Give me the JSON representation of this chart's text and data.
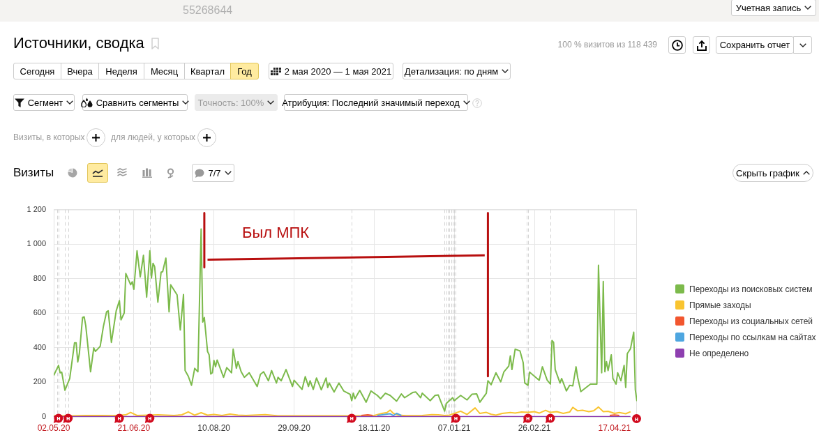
{
  "chart_data": {
    "type": "line",
    "title": "Источники, сводка",
    "subtitle": "Визиты",
    "annotations": [
      "55268644",
      "Учетная запись",
      "100 % визитов из 118 439",
      "Сохранить отчет",
      "Сегодня",
      "Вчера",
      "Неделя",
      "Месяц",
      "Квартал",
      "Год",
      "2 мая 2020 — 1 мая 2021",
      "Детализация: по дням",
      "Сегмент",
      "Сравнить сегменты",
      "Точность: 100%",
      "Атрибуция: Последний значимый переход",
      "Визиты, в которых",
      "для людей, у которых",
      "7/7",
      "Скрыть график",
      "Был МПК",
      "н"
    ],
    "xlim": [
      "2020-05-02",
      "2021-05-01"
    ],
    "xticks": [
      {
        "value": "2020-05-02",
        "label": "02.05.20"
      },
      {
        "value": "2020-06-21",
        "label": "21.06.20"
      },
      {
        "value": "2020-08-10",
        "label": "10.08.20"
      },
      {
        "value": "2020-09-29",
        "label": "29.09.20"
      },
      {
        "value": "2020-11-18",
        "label": "18.11.20"
      },
      {
        "value": "2021-01-07",
        "label": "07.01.21"
      },
      {
        "value": "2021-02-26",
        "label": "26.02.21"
      },
      {
        "value": "2021-04-17",
        "label": "17.04.21"
      }
    ],
    "ylim": [
      0,
      1200
    ],
    "yticks": [
      0,
      200,
      400,
      600,
      800,
      {
        "value": 1000,
        "label": "1 000"
      },
      {
        "value": 1200,
        "label": "1 200"
      }
    ],
    "grid": true,
    "legend": "right",
    "series": [
      {
        "name": "Переходы из поисковых систем",
        "color": "#7cba4b",
        "x": [
          "2020-05-02",
          "2020-05-05",
          "2020-05-06",
          "2020-05-07",
          "2020-05-09",
          "2020-05-12",
          "2020-05-15",
          "2020-05-16",
          "2020-05-17",
          "2020-05-18",
          "2020-05-20",
          "2020-05-21",
          "2020-05-22",
          "2020-05-25",
          "2020-05-27",
          "2020-05-28",
          "2020-05-31",
          "2020-06-02",
          "2020-06-04",
          "2020-06-05",
          "2020-06-07",
          "2020-06-10",
          "2020-06-12",
          "2020-06-13",
          "2020-06-15",
          "2020-06-16",
          "2020-06-19",
          "2020-06-20",
          "2020-06-21",
          "2020-06-23",
          "2020-06-25",
          "2020-06-27",
          "2020-06-29",
          "2020-07-01",
          "2020-07-02",
          "2020-07-03",
          "2020-07-04",
          "2020-07-06",
          "2020-07-08",
          "2020-07-09",
          "2020-07-11",
          "2020-07-13",
          "2020-07-14",
          "2020-07-18",
          "2020-07-20",
          "2020-07-22",
          "2020-07-23",
          "2020-07-25",
          "2020-07-27",
          "2020-07-29",
          "2020-07-31",
          "2020-08-02",
          "2020-08-03",
          "2020-08-04",
          "2020-08-06",
          "2020-08-07",
          "2020-08-08",
          "2020-08-09",
          "2020-08-10",
          "2020-08-11",
          "2020-08-12",
          "2020-08-16",
          "2020-08-18",
          "2020-08-21",
          "2020-08-22",
          "2020-08-24",
          "2020-08-25",
          "2020-08-27",
          "2020-08-29",
          "2020-09-01",
          "2020-09-06",
          "2020-09-08",
          "2020-09-10",
          "2020-09-13",
          "2020-09-15",
          "2020-09-18",
          "2020-09-19",
          "2020-09-21",
          "2020-09-24",
          "2020-09-28",
          "2020-09-29",
          "2020-10-04",
          "2020-10-06",
          "2020-10-08",
          "2020-10-09",
          "2020-10-11",
          "2020-10-13",
          "2020-10-16",
          "2020-10-19",
          "2020-10-20",
          "2020-10-21",
          "2020-10-24",
          "2020-10-27",
          "2020-10-30",
          "2020-11-03",
          "2020-11-04",
          "2020-11-05",
          "2020-11-06",
          "2020-11-09",
          "2020-11-13",
          "2020-11-16",
          "2020-11-20",
          "2020-11-22",
          "2020-11-25",
          "2020-11-28",
          "2020-12-02",
          "2020-12-05",
          "2020-12-07",
          "2020-12-12",
          "2020-12-14",
          "2020-12-17",
          "2020-12-18",
          "2020-12-23",
          "2020-12-26",
          "2020-12-28",
          "2021-01-01",
          "2021-01-02",
          "2021-01-06",
          "2021-01-07",
          "2021-01-11",
          "2021-01-15",
          "2021-01-18",
          "2021-01-21",
          "2021-01-23",
          "2021-01-27",
          "2021-01-28",
          "2021-01-30",
          "2021-02-02",
          "2021-02-05",
          "2021-02-07",
          "2021-02-10",
          "2021-02-11",
          "2021-02-12",
          "2021-02-14",
          "2021-02-17",
          "2021-02-19",
          "2021-02-20",
          "2021-02-22",
          "2021-02-23",
          "2021-03-01",
          "2021-03-03",
          "2021-03-06",
          "2021-03-08",
          "2021-03-09",
          "2021-03-10",
          "2021-03-11",
          "2021-03-14",
          "2021-03-15",
          "2021-03-18",
          "2021-03-20",
          "2021-03-22",
          "2021-03-24",
          "2021-03-25",
          "2021-03-27",
          "2021-04-02",
          "2021-04-06",
          "2021-04-07",
          "2021-04-09",
          "2021-04-10",
          "2021-04-11",
          "2021-04-12",
          "2021-04-13",
          "2021-04-15",
          "2021-04-16",
          "2021-04-18",
          "2021-04-19",
          "2021-04-21",
          "2021-04-23",
          "2021-04-24",
          "2021-04-25",
          "2021-04-27",
          "2021-04-29",
          "2021-04-30",
          "2021-05-01"
        ],
        "values": [
          240,
          298,
          255,
          259,
          154,
          222,
          429,
          429,
          318,
          366,
          575,
          579,
          528,
          261,
          399,
          379,
          408,
          523,
          608,
          614,
          431,
          614,
          673,
          562,
          601,
          830,
          765,
          782,
          738,
          961,
          810,
          935,
          693,
          961,
          804,
          889,
          869,
          664,
          837,
          840,
          919,
          608,
          765,
          706,
          503,
          708,
          268,
          235,
          183,
          281,
          261,
          1087,
          549,
          575,
          379,
          359,
          248,
          255,
          327,
          290,
          329,
          229,
          285,
          255,
          392,
          281,
          320,
          261,
          229,
          255,
          176,
          246,
          261,
          209,
          268,
          196,
          229,
          209,
          274,
          176,
          212,
          159,
          233,
          176,
          209,
          159,
          225,
          157,
          225,
          170,
          196,
          144,
          196,
          150,
          131,
          94,
          137,
          105,
          153,
          85,
          150,
          124,
          105,
          137,
          124,
          91,
          133,
          111,
          141,
          144,
          111,
          137,
          94,
          124,
          127,
          33,
          78,
          111,
          94,
          124,
          98,
          131,
          133,
          85,
          137,
          209,
          186,
          255,
          203,
          261,
          294,
          353,
          274,
          392,
          382,
          314,
          196,
          183,
          259,
          212,
          290,
          212,
          190,
          442,
          431,
          274,
          196,
          222,
          150,
          183,
          180,
          290,
          229,
          146,
          190,
          190,
          878,
          255,
          784,
          261,
          320,
          268,
          359,
          222,
          190,
          255,
          209,
          298,
          170,
          366,
          395,
          490,
          157,
          91
        ]
      },
      {
        "name": "Прямые заходы",
        "color": "#f9c430",
        "x": [
          "2020-05-02",
          "2020-05-14",
          "2020-05-22",
          "2020-06-01",
          "2020-06-08",
          "2020-06-16",
          "2020-06-19",
          "2020-06-23",
          "2020-06-27",
          "2020-07-06",
          "2020-07-11",
          "2020-07-16",
          "2020-07-21",
          "2020-07-25",
          "2020-07-29",
          "2020-08-02",
          "2020-08-06",
          "2020-08-10",
          "2020-08-15",
          "2020-08-20",
          "2020-08-25",
          "2020-08-30",
          "2020-09-11",
          "2020-09-19",
          "2020-09-29",
          "2020-10-09",
          "2020-10-19",
          "2020-10-29",
          "2020-11-09",
          "2020-11-18",
          "2020-11-23",
          "2020-11-26",
          "2020-11-28",
          "2020-11-30",
          "2020-12-03",
          "2020-12-08",
          "2020-12-18",
          "2020-12-24",
          "2020-12-28",
          "2021-01-01",
          "2021-01-04",
          "2021-01-11",
          "2021-01-15",
          "2021-01-20",
          "2021-01-23",
          "2021-01-27",
          "2021-01-30",
          "2021-02-02",
          "2021-02-06",
          "2021-02-11",
          "2021-02-14",
          "2021-02-18",
          "2021-02-22",
          "2021-02-26",
          "2021-03-01",
          "2021-03-05",
          "2021-03-08",
          "2021-03-12",
          "2021-03-16",
          "2021-03-20",
          "2021-03-22",
          "2021-03-25",
          "2021-03-28",
          "2021-04-01",
          "2021-04-04",
          "2021-04-07",
          "2021-04-10",
          "2021-04-13",
          "2021-04-17",
          "2021-04-20",
          "2021-04-24",
          "2021-04-27"
        ],
        "values": [
          6,
          6,
          8,
          8,
          7,
          12,
          26,
          8,
          9,
          12,
          10,
          8,
          12,
          29,
          10,
          24,
          10,
          14,
          8,
          16,
          10,
          8,
          13,
          6,
          6,
          6,
          6,
          6,
          6,
          8,
          20,
          25,
          39,
          20,
          10,
          7,
          8,
          13,
          12,
          8,
          10,
          33,
          14,
          52,
          20,
          26,
          15,
          10,
          20,
          25,
          22,
          28,
          26,
          30,
          22,
          38,
          26,
          30,
          20,
          28,
          55,
          35,
          38,
          30,
          35,
          57,
          30,
          32,
          20,
          25,
          18,
          30
        ]
      },
      {
        "name": "Переходы из социальных сетей",
        "color": "#f2562f",
        "x": [
          "2020-11-10",
          "2020-11-14",
          "2020-11-17",
          "2021-03-30",
          "2021-04-14",
          "2021-04-17",
          "2021-04-20"
        ],
        "values": [
          8,
          12,
          8,
          null,
          8,
          11,
          8
        ]
      },
      {
        "name": "Переходы по ссылкам на сайтах",
        "color": "#4ea6e0",
        "x": [
          "2020-11-20",
          "2020-11-23",
          "2020-11-28",
          "2020-11-30",
          "2020-12-02",
          "2020-12-05"
        ],
        "values": [
          8,
          12,
          18,
          8,
          20,
          8
        ]
      },
      {
        "name": "Не определено",
        "color": "#8e3fb0",
        "x": [
          "2020-05-02",
          "2020-08-20",
          "2020-10-20",
          "2020-12-20",
          "2021-02-10",
          "2021-04-05",
          "2021-04-27"
        ],
        "values": [
          1,
          1,
          1,
          1,
          1,
          1,
          1
        ]
      },
      {
        "color": "#b80f0f",
        "x": [
          "2020-08-04",
          "2020-08-04"
        ],
        "values": [
          1180,
          865
        ]
      },
      {
        "color": "#b80f0f",
        "x": [
          "2020-08-06",
          "2021-01-26"
        ],
        "values": [
          910,
          935
        ]
      },
      {
        "color": "#b80f0f",
        "x": [
          "2021-01-28",
          "2021-01-28"
        ],
        "values": [
          1180,
          235
        ]
      }
    ],
    "ref_lines": [
      {
        "axis": "x",
        "value": "2020-05-04",
        "label": null,
        "color": "#d4d4d4",
        "line_style": "dashed"
      },
      {
        "axis": "x",
        "value": "2020-05-05",
        "label": "н",
        "color": "#d4d4d4",
        "line_style": "dashed"
      },
      {
        "axis": "x",
        "value": "2020-05-09",
        "label": null,
        "color": "#d4d4d4",
        "line_style": "dashed"
      },
      {
        "axis": "x",
        "value": "2020-05-11",
        "label": "н",
        "color": "#d4d4d4",
        "line_style": "dashed"
      },
      {
        "axis": "x",
        "value": "2020-06-12",
        "label": "н",
        "color": "#d4d4d4",
        "line_style": "dashed"
      },
      {
        "axis": "x",
        "value": "2020-07-01",
        "label": "н",
        "color": "#d4d4d4",
        "line_style": "dashed"
      },
      {
        "axis": "x",
        "value": "2020-11-04",
        "label": "н",
        "color": "#d4d4d4",
        "line_style": "dashed"
      },
      {
        "axis": "x",
        "value": "2021-01-01",
        "label": null,
        "color": "#d4d4d4",
        "line_style": "dashed"
      },
      {
        "axis": "x",
        "value": "2021-01-02",
        "label": null,
        "color": "#d4d4d4",
        "line_style": "dashed"
      },
      {
        "axis": "x",
        "value": "2021-01-03",
        "label": null,
        "color": "#d4d4d4",
        "line_style": "dashed"
      },
      {
        "axis": "x",
        "value": "2021-01-04",
        "label": null,
        "color": "#d4d4d4",
        "line_style": "dashed"
      },
      {
        "axis": "x",
        "value": "2021-01-05",
        "label": null,
        "color": "#d4d4d4",
        "line_style": "dashed"
      },
      {
        "axis": "x",
        "value": "2021-01-06",
        "label": null,
        "color": "#d4d4d4",
        "line_style": "dashed"
      },
      {
        "axis": "x",
        "value": "2021-01-07",
        "label": null,
        "color": "#d4d4d4",
        "line_style": "dashed"
      },
      {
        "axis": "x",
        "value": "2021-01-08",
        "label": "н",
        "color": "#d4d4d4",
        "line_style": "dashed"
      },
      {
        "axis": "x",
        "value": "2021-02-21",
        "label": null,
        "color": "#d4d4d4",
        "line_style": "dashed"
      },
      {
        "axis": "x",
        "value": "2021-02-22",
        "label": "н",
        "color": "#d4d4d4",
        "line_style": "dashed"
      },
      {
        "axis": "x",
        "value": "2021-03-08",
        "label": "н",
        "color": "#d4d4d4",
        "line_style": "dashed"
      }
    ]
  }
}
